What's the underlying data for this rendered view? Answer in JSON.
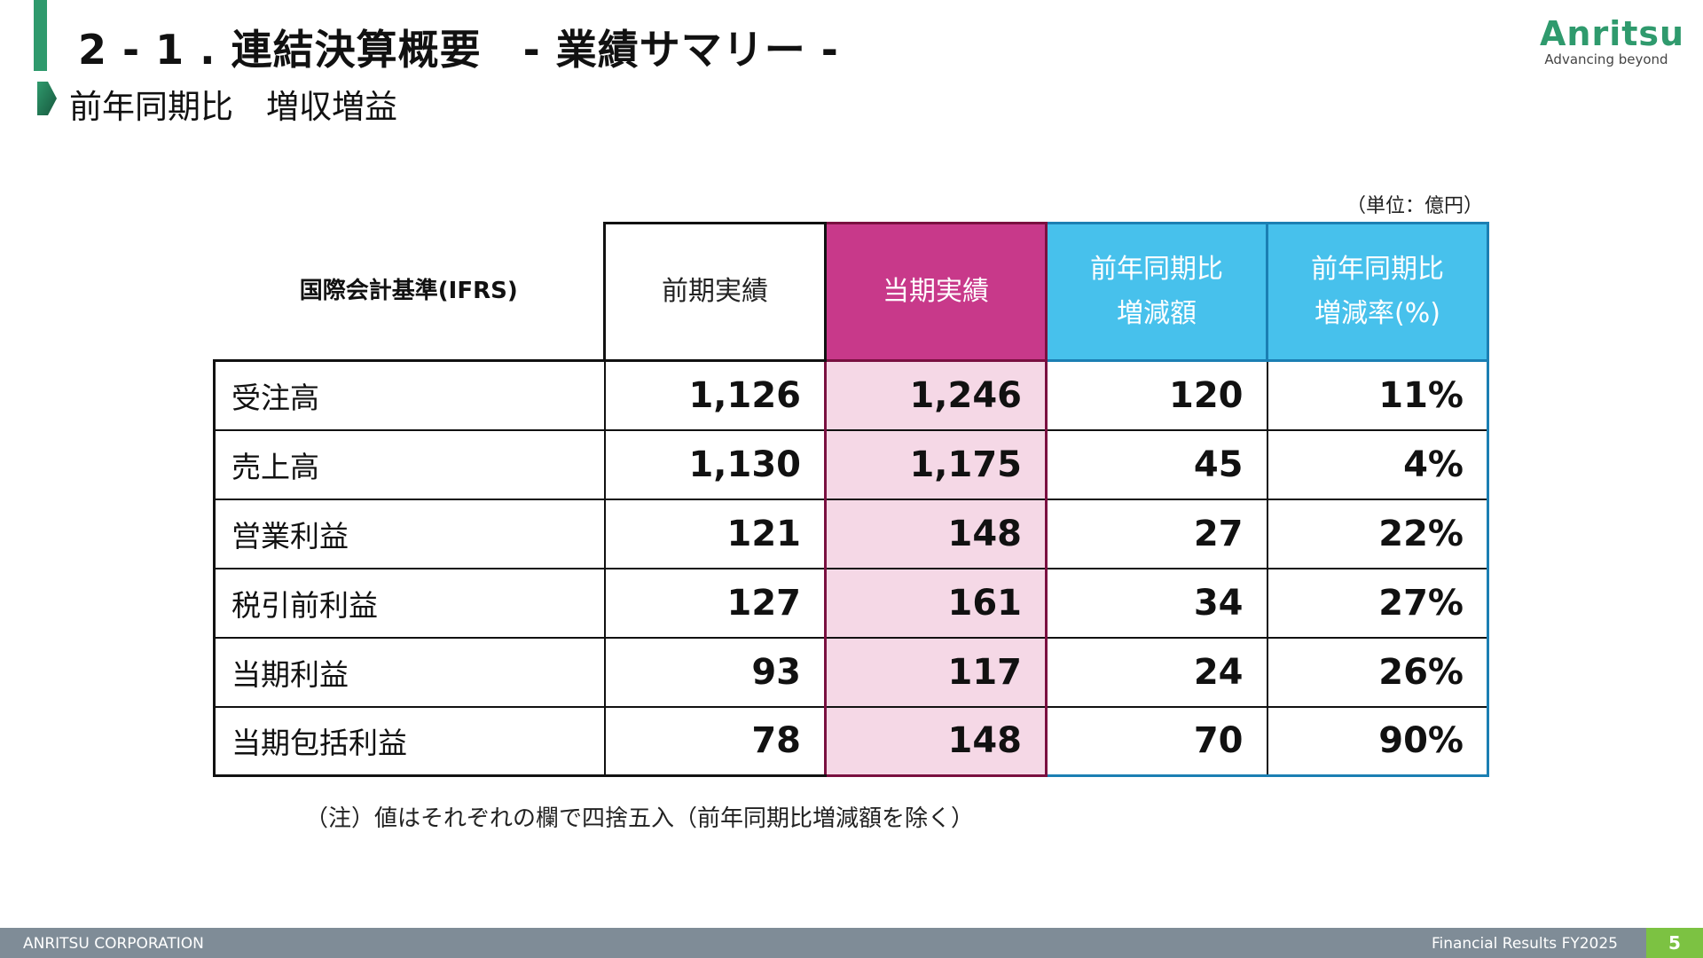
{
  "header": {
    "title": "2 - 1 . 連結決算概要　- 業績サマリー -",
    "subtitle": "前年同期比　増収増益"
  },
  "logo": {
    "wordmark": "Anritsu",
    "tagline": "Advancing beyond",
    "color": "#2f9a6d"
  },
  "table": {
    "unit": "（単位：億円）",
    "corner_label": "国際会計基準(IFRS)",
    "headers": {
      "prev": "前期実績",
      "cur": "当期実績",
      "diff_line1": "前年同期比",
      "diff_line2": "増減額",
      "rate_line1": "前年同期比",
      "rate_line2": "増減率(%)"
    },
    "rows": [
      {
        "label": "受注高",
        "prev": "1,126",
        "cur": "1,246",
        "diff": "120",
        "rate": "11%"
      },
      {
        "label": "売上高",
        "prev": "1,130",
        "cur": "1,175",
        "diff": "45",
        "rate": "4%"
      },
      {
        "label": "営業利益",
        "prev": "121",
        "cur": "148",
        "diff": "27",
        "rate": "22%"
      },
      {
        "label": "税引前利益",
        "prev": "127",
        "cur": "161",
        "diff": "34",
        "rate": "27%"
      },
      {
        "label": "当期利益",
        "prev": "93",
        "cur": "117",
        "diff": "24",
        "rate": "26%"
      },
      {
        "label": "当期包括利益",
        "prev": "78",
        "cur": "148",
        "diff": "70",
        "rate": "90%"
      }
    ],
    "note": "（注）値はそれぞれの欄で四捨五入（前年同期比増減額を除く）"
  },
  "footer": {
    "company": "ANRITSU CORPORATION",
    "report": "Financial Results FY2025",
    "page": "5"
  },
  "colors": {
    "accent_green": "#2f9a6d",
    "current_header": "#c8398a",
    "current_cell": "#f5d8e6",
    "diff_header": "#47c1ec",
    "footer_bar": "#7f8c97",
    "page_badge": "#7cc242"
  }
}
